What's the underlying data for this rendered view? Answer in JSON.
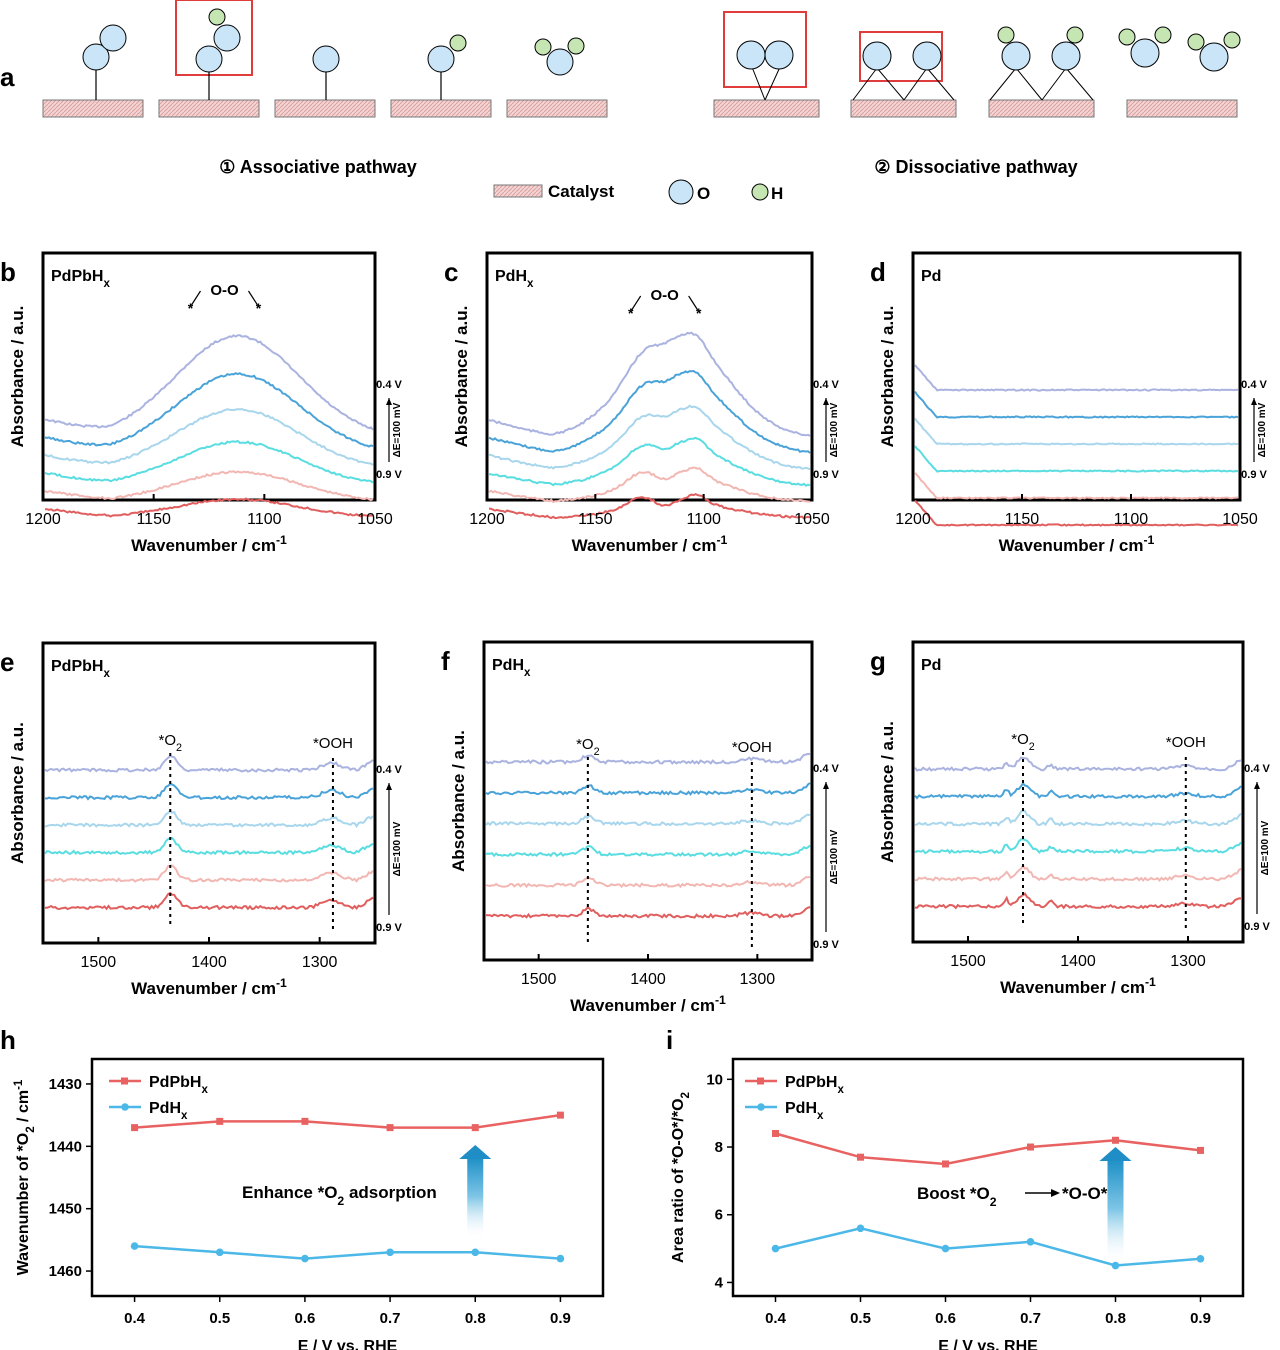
{
  "colors": {
    "atom_o": "#c9e5f7",
    "atom_h": "#c5e6b3",
    "catalyst": "#f0c9c9",
    "highlight_box": "#e03c3c",
    "pdpbhx_line": "#e96262",
    "pdhx_line": "#4cb8e8",
    "spectra_0_4V": "#aab3e0",
    "spectra_0_5V": "#4aa3d8",
    "spectra_0_6V": "#a8d6ec",
    "spectra_0_7V": "#59dde0",
    "spectra_0_8V": "#f2b7b2",
    "spectra_0_9V": "#e15e5e",
    "arrow_gradient_top": "#2a93c8",
    "arrow_gradient_bottom": "#e8f5fb"
  },
  "panel_a": {
    "letter": "a",
    "associative_label": "① Associative pathway",
    "dissociative_label": "② Dissociative pathway",
    "legend": {
      "catalyst": "Catalyst",
      "o": "O",
      "h": "H"
    }
  },
  "spectra": [
    {
      "letter": "b",
      "sample": "PdPbH",
      "subscript": "x",
      "peak_label": "O-O",
      "ylabel": "Absorbance / a.u.",
      "xlabel": "Wavenumber / cm",
      "xlabel_sup": "-1",
      "xticks": [
        "1200",
        "1150",
        "1100",
        "1050"
      ],
      "top_v": "0.4 V",
      "bottom_v": "0.9 V",
      "delta": "ΔE=100 mV"
    },
    {
      "letter": "c",
      "sample": "PdH",
      "subscript": "x",
      "peak_label": "O-O",
      "ylabel": "Absorbance / a.u.",
      "xlabel": "Wavenumber / cm",
      "xlabel_sup": "-1",
      "xticks": [
        "1200",
        "1150",
        "1100",
        "1050"
      ],
      "top_v": "0.4 V",
      "bottom_v": "0.9 V",
      "delta": "ΔE=100 mV"
    },
    {
      "letter": "d",
      "sample": "Pd",
      "subscript": "",
      "ylabel": "Absorbance / a.u.",
      "xlabel": "Wavenumber / cm",
      "xlabel_sup": "-1",
      "xticks": [
        "1200",
        "1150",
        "1100",
        "1050"
      ],
      "top_v": "0.4 V",
      "bottom_v": "0.9 V",
      "delta": "ΔE=100 mV"
    },
    {
      "letter": "e",
      "sample": "PdPbH",
      "subscript": "x",
      "o2_label": "*O",
      "o2_sub": "2",
      "ooh_label": "*OOH",
      "ylabel": "Absorbance / a.u.",
      "xlabel": "Wavenumber / cm",
      "xlabel_sup": "-1",
      "xticks": [
        "1500",
        "1400",
        "1300"
      ],
      "top_v": "0.4 V",
      "bottom_v": "0.9 V",
      "delta": "ΔE=100 mV"
    },
    {
      "letter": "f",
      "sample": "PdH",
      "subscript": "x",
      "o2_label": "*O",
      "o2_sub": "2",
      "ooh_label": "*OOH",
      "ylabel": "Absorbance / a.u.",
      "xlabel": "Wavenumber / cm",
      "xlabel_sup": "-1",
      "xticks": [
        "1500",
        "1400",
        "1300"
      ],
      "top_v": "0.4 V",
      "bottom_v": "0.9 V",
      "delta": "ΔE=100 mV"
    },
    {
      "letter": "g",
      "sample": "Pd",
      "subscript": "",
      "o2_label": "*O",
      "o2_sub": "2",
      "ooh_label": "*OOH",
      "ylabel": "Absorbance / a.u.",
      "xlabel": "Wavenumber / cm",
      "xlabel_sup": "-1",
      "xticks": [
        "1500",
        "1400",
        "1300"
      ],
      "top_v": "0.4 V",
      "bottom_v": "0.9 V",
      "delta": "ΔE=100 mV"
    }
  ],
  "chart_data": [
    {
      "panel": "h",
      "type": "line",
      "title": "",
      "xlabel": "E / V vs. RHE",
      "ylabel": "Wavenumber of *O2 / cm-1",
      "ylabel_parts": {
        "pre": "Wavenumber of *O",
        "sub": "2",
        "post": " / cm",
        "sup": "-1"
      },
      "x": [
        0.4,
        0.5,
        0.6,
        0.7,
        0.8,
        0.9
      ],
      "xticks": [
        "0.4",
        "0.5",
        "0.6",
        "0.7",
        "0.8",
        "0.9"
      ],
      "yticks": [
        "1430",
        "1440",
        "1450",
        "1460"
      ],
      "ylim": [
        1426,
        1464
      ],
      "yreversed": true,
      "series": [
        {
          "name": "PdPbHx",
          "label": "PdPbH",
          "sub": "x",
          "values": [
            1437,
            1436,
            1436,
            1437,
            1437,
            1435
          ]
        },
        {
          "name": "PdHx",
          "label": "PdH",
          "sub": "x",
          "values": [
            1456,
            1457,
            1458,
            1457,
            1457,
            1458
          ]
        }
      ],
      "annotation": {
        "pre": "Enhance *O",
        "sub": "2",
        "post": " adsorption"
      }
    },
    {
      "panel": "i",
      "type": "line",
      "title": "",
      "xlabel": "E / V vs. RHE",
      "ylabel": "Area ratio of *O-O*/*O2",
      "ylabel_parts": {
        "pre": "Area ratio of *O-O*/*O",
        "sub": "2",
        "post": "",
        "sup": ""
      },
      "x": [
        0.4,
        0.5,
        0.6,
        0.7,
        0.8,
        0.9
      ],
      "xticks": [
        "0.4",
        "0.5",
        "0.6",
        "0.7",
        "0.8",
        "0.9"
      ],
      "yticks": [
        "4",
        "6",
        "8",
        "10"
      ],
      "ylim": [
        3.6,
        10.6
      ],
      "yreversed": false,
      "series": [
        {
          "name": "PdPbHx",
          "label": "PdPbH",
          "sub": "x",
          "values": [
            8.4,
            7.7,
            7.5,
            8.0,
            8.2,
            7.9
          ]
        },
        {
          "name": "PdHx",
          "label": "PdH",
          "sub": "x",
          "values": [
            5.0,
            5.6,
            5.0,
            5.2,
            4.5,
            4.7
          ]
        }
      ],
      "annotation": {
        "pre": "Boost *O",
        "sub": "2",
        "post": "*O-O*"
      }
    }
  ]
}
